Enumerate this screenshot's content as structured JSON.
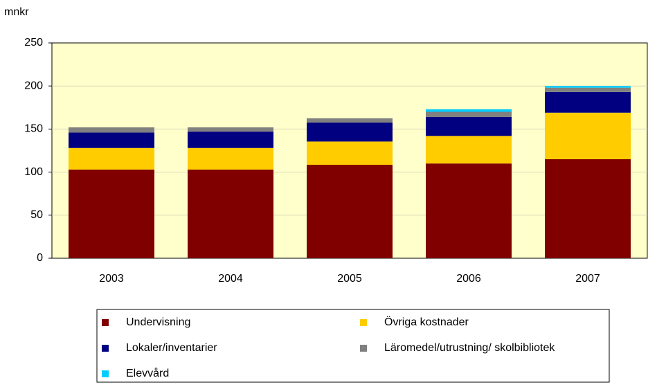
{
  "chart_data": {
    "type": "stacked_bar",
    "y_label": "mnkr",
    "categories": [
      "2003",
      "2004",
      "2005",
      "2006",
      "2007"
    ],
    "series": [
      {
        "name": "Undervisning",
        "color": "#800000",
        "values": [
          103,
          103,
          108.5,
          110,
          115
        ]
      },
      {
        "name": "Övriga kostnader",
        "color": "#FFCC00",
        "values": [
          25,
          25,
          27,
          32,
          54
        ]
      },
      {
        "name": "Lokaler/inventarier",
        "color": "#000080",
        "values": [
          18,
          19,
          22,
          22,
          24
        ]
      },
      {
        "name": "Läromedel/utrustning/ skolbibliotek",
        "color": "#808080",
        "values": [
          6,
          5,
          5,
          6,
          5
        ]
      },
      {
        "name": "Elevvård",
        "color": "#00CCFF",
        "values": [
          0,
          0,
          0,
          3,
          2
        ]
      }
    ],
    "ylim": [
      0,
      250
    ],
    "yticks": [
      0,
      50,
      100,
      150,
      200,
      250
    ],
    "grid": true,
    "legend": "bottom"
  }
}
